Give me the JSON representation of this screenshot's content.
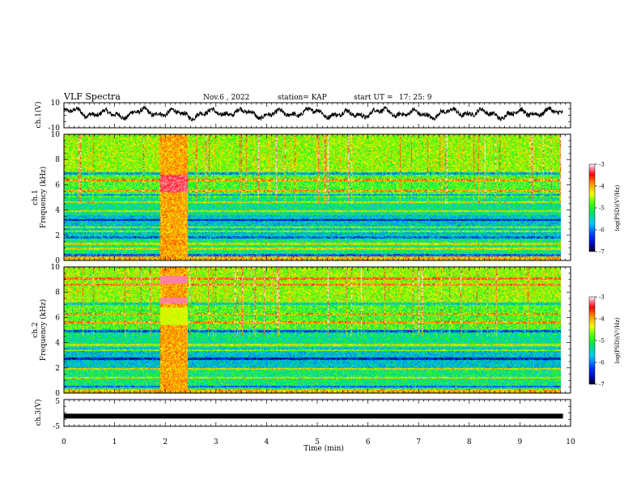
{
  "header": {
    "title": "VLF Spectra",
    "date": "Nov.6 , 2022",
    "station": "station= KAP",
    "start": "start UT =",
    "start_time": "17: 25: 9"
  },
  "chart_data": [
    {
      "type": "line",
      "panel": "ch1-waveform",
      "ylabel": "ch.1(V)",
      "ylim": [
        -10,
        10
      ],
      "yticks": [
        "10",
        "-10"
      ],
      "xlim": [
        0,
        10
      ],
      "data_end": 9.85,
      "baseline": 1.5,
      "amplitude": 4
    },
    {
      "type": "heatmap",
      "panel": "ch1-spectrogram",
      "ylabel_channel": "ch.1",
      "ylabel": "Frequency (kHz)",
      "ylim": [
        0,
        10
      ],
      "yticks": [
        "0",
        "2",
        "4",
        "6",
        "8",
        "10"
      ],
      "xlim": [
        0,
        10
      ],
      "data_end": 9.85,
      "burst_range_min": [
        1.9,
        2.45
      ],
      "lines_khz": [
        0.4,
        0.9,
        1.3,
        1.8,
        2.3,
        2.6,
        3.2,
        3.9,
        4.6,
        5.2,
        5.5,
        6.4,
        6.9
      ],
      "colorbar": {
        "label": "log(PSD)(V²/Hz)",
        "ticks": [
          "-3",
          "-4",
          "-5",
          "-6",
          "-7"
        ],
        "range": [
          -7,
          -3
        ]
      }
    },
    {
      "type": "heatmap",
      "panel": "ch2-spectrogram",
      "ylabel_channel": "ch.2",
      "ylabel": "Frequency (kHz)",
      "ylim": [
        0,
        10
      ],
      "yticks": [
        "0",
        "2",
        "4",
        "6",
        "8",
        "10"
      ],
      "xlim": [
        0,
        10
      ],
      "data_end": 9.85,
      "burst_range_min": [
        1.9,
        2.45
      ],
      "lines_khz": [
        0.5,
        1.2,
        1.9,
        2.7,
        3.4,
        3.8,
        4.9,
        5.6,
        6.3,
        7.1,
        8.6,
        9.1
      ],
      "colorbar": {
        "label": "log(PSD)(V²/Hz)",
        "ticks": [
          "-3",
          "-4",
          "-5",
          "-6",
          "-7"
        ],
        "range": [
          -7,
          -3
        ]
      }
    },
    {
      "type": "line",
      "panel": "ch3-waveform",
      "ylabel": "ch.3(V)",
      "ylim": [
        -5,
        5
      ],
      "yticks": [
        "5",
        "-5"
      ],
      "xlim": [
        0,
        10
      ],
      "data_end": 9.85,
      "baseline": -1.2
    }
  ],
  "xaxis": {
    "label": "Time (min)",
    "ticks": [
      "0",
      "1",
      "2",
      "3",
      "4",
      "5",
      "6",
      "7",
      "8",
      "9",
      "10"
    ],
    "range": [
      0,
      10
    ]
  }
}
